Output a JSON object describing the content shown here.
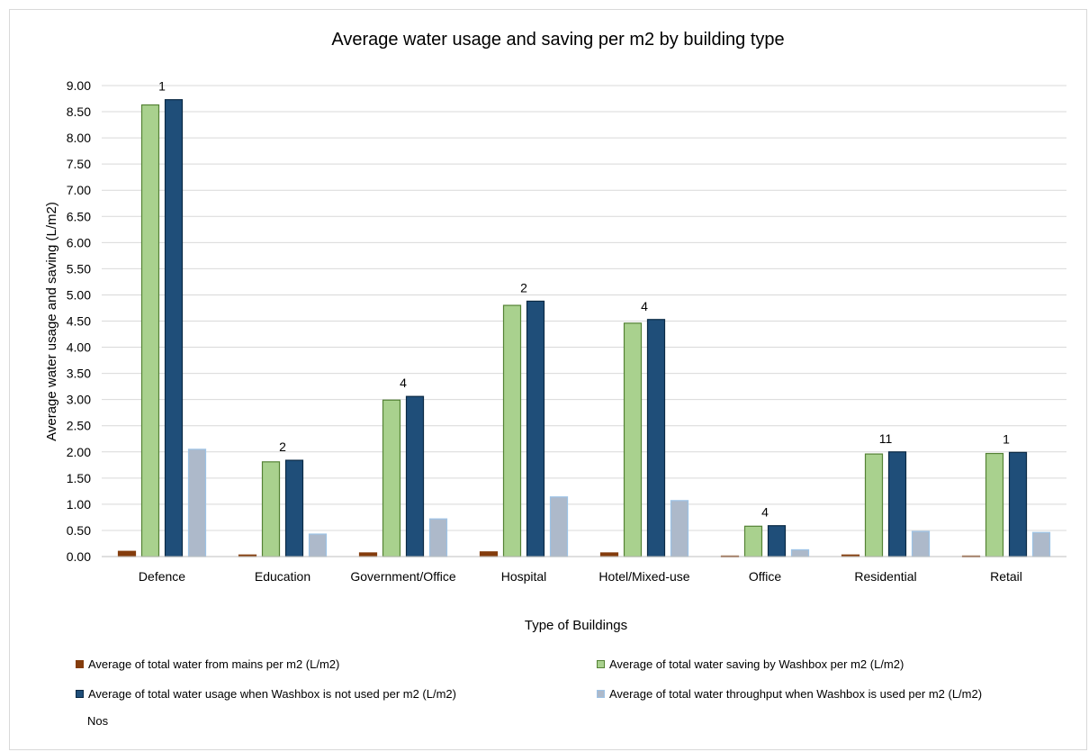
{
  "chart_data": {
    "type": "bar",
    "title": "Average water usage and saving per m2 by building type",
    "xlabel": "Type of Buildings",
    "ylabel": "Average  water usage and saving (L/m2)",
    "ylim": [
      0,
      9
    ],
    "y_ticks": [
      "0.00",
      "0.50",
      "1.00",
      "1.50",
      "2.00",
      "2.50",
      "3.00",
      "3.50",
      "4.00",
      "4.50",
      "5.00",
      "5.50",
      "6.00",
      "6.50",
      "7.00",
      "7.50",
      "8.00",
      "8.50",
      "9.00"
    ],
    "grid": true,
    "legend_position": "bottom",
    "categories": [
      "Defence",
      "Education",
      "Government/Office",
      "Hospital",
      "Hotel/Mixed-use",
      "Office",
      "Residential",
      "Retail"
    ],
    "series": [
      {
        "name": "Average of total water from mains per m2 (L/m2)",
        "color": "#843c0c",
        "border": "#843c0c",
        "values": [
          0.1,
          0.03,
          0.07,
          0.09,
          0.07,
          0.01,
          0.03,
          0.01
        ]
      },
      {
        "name": "Average of total water saving by Washbox per m2 (L/m2)",
        "color": "#a9d18e",
        "border": "#548235",
        "values": [
          8.63,
          1.81,
          2.99,
          4.8,
          4.46,
          0.58,
          1.96,
          1.97
        ]
      },
      {
        "name": "Average of total water usage when Washbox is not used per m2 (L/m2)",
        "color": "#1f4e79",
        "border": "#0b2a45",
        "values": [
          8.73,
          1.84,
          3.06,
          4.88,
          4.53,
          0.59,
          2.0,
          1.99
        ]
      },
      {
        "name": "Average of total water throughput when Washbox is used per m2 (L/m2)",
        "color": "#adb9ca",
        "border": "#9dc3e6",
        "values": [
          2.05,
          0.43,
          0.72,
          1.14,
          1.07,
          0.13,
          0.48,
          0.46
        ]
      }
    ],
    "nos_label": "Nos",
    "nos_values": [
      "1",
      "2",
      "4",
      "2",
      "4",
      "4",
      "11",
      "1"
    ]
  }
}
